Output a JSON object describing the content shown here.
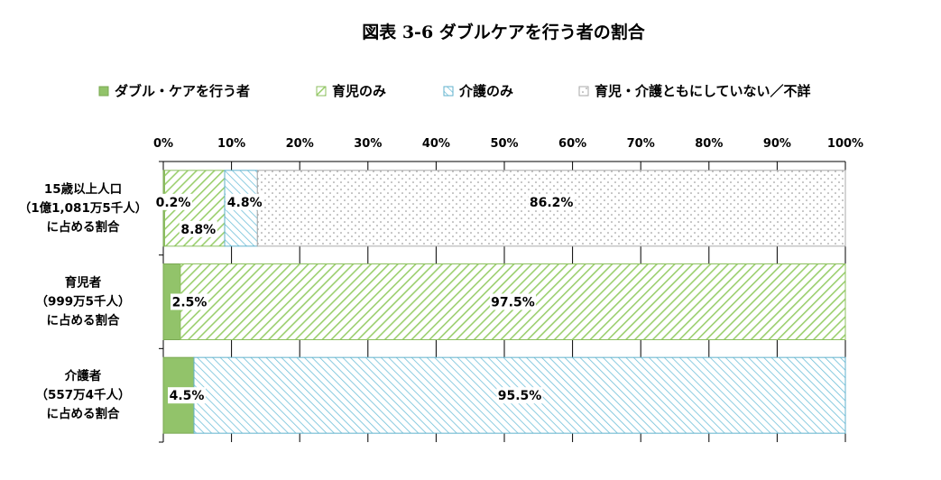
{
  "chart_data": {
    "type": "bar",
    "orientation": "horizontal",
    "stacked": "percent",
    "title": "図表 3-6 ダブルケアを行う者の割合",
    "legend_position": "top",
    "grid": true,
    "xlim": [
      0,
      100
    ],
    "x_ticks": [
      "0%",
      "10%",
      "20%",
      "30%",
      "40%",
      "50%",
      "60%",
      "70%",
      "80%",
      "90%",
      "100%"
    ],
    "categories": [
      [
        "15歳以上人口",
        "（1億1,081万5千人）",
        "に占める割合"
      ],
      [
        "育児者",
        "（999万5千人）",
        "に占める割合"
      ],
      [
        "介護者",
        "（557万4千人）",
        "に占める割合"
      ]
    ],
    "series": [
      {
        "name": "ダブル・ケアを行う者",
        "color": "#92c36a",
        "pattern": "solid",
        "values": [
          0.2,
          2.5,
          4.5
        ],
        "labels": [
          "0.2%",
          "2.5%",
          "4.5%"
        ]
      },
      {
        "name": "育児のみ",
        "color": "#9bcf6e",
        "pattern": "diagonal",
        "values": [
          8.8,
          97.5,
          0
        ],
        "labels": [
          "8.8%",
          "97.5%",
          ""
        ]
      },
      {
        "name": "介護のみ",
        "color": "#6fbfd9",
        "pattern": "diagonal-reverse",
        "values": [
          4.8,
          0,
          95.5
        ],
        "labels": [
          "4.8%",
          "",
          "95.5%"
        ]
      },
      {
        "name": "育児・介護ともにしていない／不詳",
        "color": "#999999",
        "pattern": "dots",
        "values": [
          86.2,
          0,
          0
        ],
        "labels": [
          "86.2%",
          "",
          ""
        ]
      }
    ]
  }
}
